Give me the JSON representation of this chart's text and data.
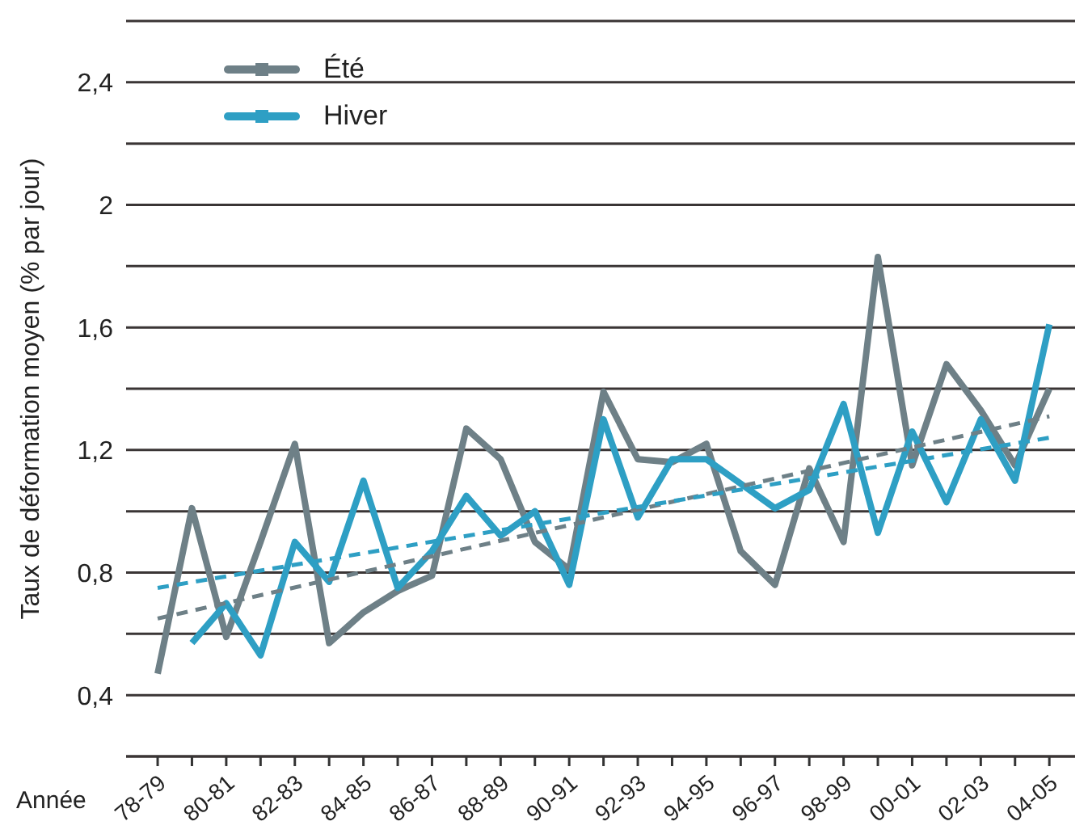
{
  "chart_data": {
    "type": "line",
    "xlabel": "Année",
    "ylabel": "Taux de déformation moyen (% par jour)",
    "categories": [
      "78-79",
      null,
      "80-81",
      null,
      "82-83",
      null,
      "84-85",
      null,
      "86-87",
      null,
      "88-89",
      null,
      "90-91",
      null,
      "92-93",
      null,
      "94-95",
      null,
      "96-97",
      null,
      "98-99",
      null,
      "00-01",
      null,
      "02-03",
      null,
      "04-05"
    ],
    "series": [
      {
        "name": "Été",
        "color": "#6e8087",
        "values": [
          0.47,
          1.01,
          0.59,
          0.9,
          1.22,
          0.57,
          0.67,
          0.74,
          0.79,
          1.27,
          1.17,
          0.9,
          0.81,
          1.39,
          1.17,
          1.16,
          1.22,
          0.87,
          0.76,
          1.14,
          0.9,
          1.83,
          1.15,
          1.48,
          1.33,
          1.15,
          1.4
        ]
      },
      {
        "name": "Hiver",
        "color": "#2e9fc4",
        "values": [
          null,
          0.57,
          0.7,
          0.53,
          0.9,
          0.77,
          1.1,
          0.75,
          0.87,
          1.05,
          0.92,
          1.0,
          0.76,
          1.3,
          0.98,
          1.17,
          1.17,
          1.09,
          1.01,
          1.07,
          1.35,
          0.93,
          1.26,
          1.03,
          1.3,
          1.1,
          1.61
        ]
      },
      {
        "type": "line",
        "color": "#6e8087",
        "line_style": "dashed",
        "x": [
          "78-79",
          "04-05"
        ],
        "values": [
          0.65,
          1.31
        ]
      },
      {
        "type": "line",
        "color": "#2e9fc4",
        "line_style": "dashed",
        "x": [
          "78-79",
          "04-05"
        ],
        "values": [
          0.75,
          1.24
        ]
      }
    ],
    "ylim": [
      0.2,
      2.6
    ],
    "yticks": [
      {
        "value": 0.2,
        "label": null
      },
      {
        "value": 0.4,
        "label": "0,4"
      },
      {
        "value": 0.6,
        "label": null
      },
      {
        "value": 0.8,
        "label": "0,8"
      },
      {
        "value": 1.0,
        "label": null
      },
      {
        "value": 1.2,
        "label": "1,2"
      },
      {
        "value": 1.4,
        "label": null
      },
      {
        "value": 1.6,
        "label": "1,6"
      },
      {
        "value": 1.8,
        "label": null
      },
      2,
      {
        "value": 2.2,
        "label": null
      },
      {
        "value": 2.4,
        "label": "2,4"
      },
      {
        "value": 2.6,
        "label": null
      }
    ],
    "grid": "y",
    "legend": "top left",
    "line_style": "solid"
  }
}
